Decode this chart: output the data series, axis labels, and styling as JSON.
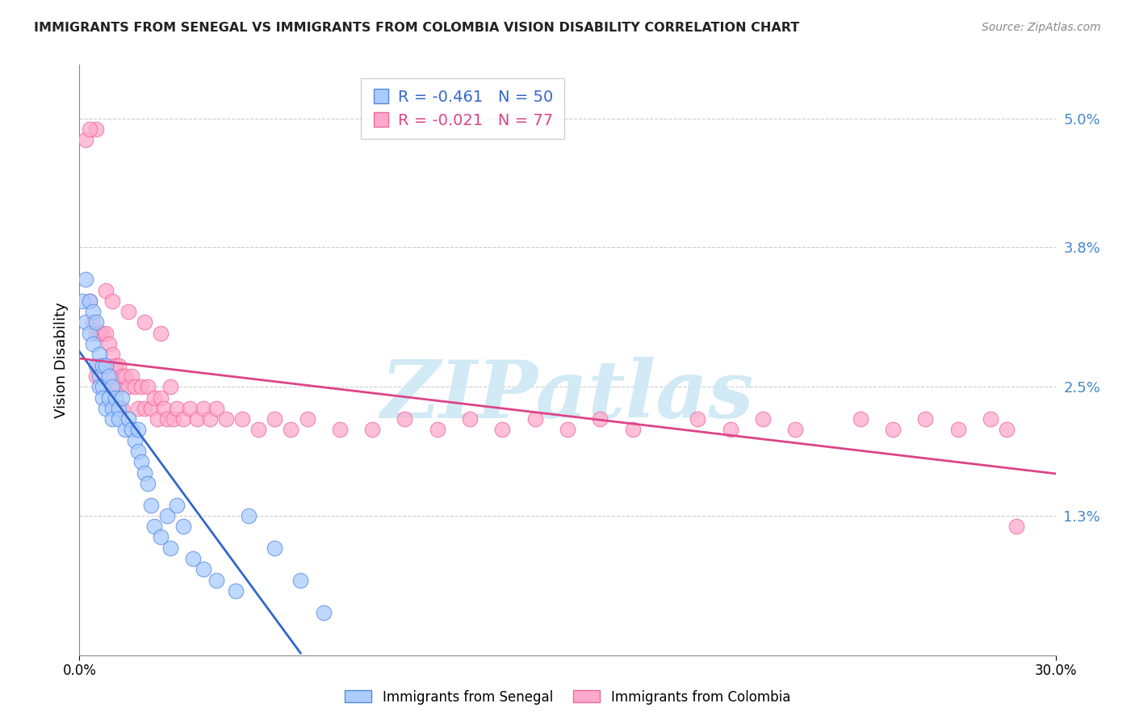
{
  "title": "IMMIGRANTS FROM SENEGAL VS IMMIGRANTS FROM COLOMBIA VISION DISABILITY CORRELATION CHART",
  "source": "Source: ZipAtlas.com",
  "ylabel": "Vision Disability",
  "xlim": [
    0.0,
    0.3
  ],
  "ylim": [
    0.0,
    0.055
  ],
  "ytick_vals": [
    0.013,
    0.025,
    0.038,
    0.05
  ],
  "ytick_labels": [
    "1.3%",
    "2.5%",
    "3.8%",
    "5.0%"
  ],
  "xtick_vals": [
    0.0,
    0.3
  ],
  "xtick_labels": [
    "0.0%",
    "30.0%"
  ],
  "senegal_R": -0.461,
  "senegal_N": 50,
  "colombia_R": -0.021,
  "colombia_N": 77,
  "senegal_color": "#aaccff",
  "colombia_color": "#ffaacc",
  "senegal_edge_color": "#5588dd",
  "colombia_edge_color": "#ee6699",
  "senegal_line_color": "#3366cc",
  "colombia_line_color": "#dd4488",
  "background_color": "#FFFFFF",
  "watermark_text": "ZIPatlas",
  "watermark_color": "#cce8f4",
  "grid_color": "#cccccc",
  "title_color": "#222222",
  "source_color": "#888888",
  "right_tick_color": "#4488cc",
  "senegal_x": [
    0.001,
    0.002,
    0.002,
    0.003,
    0.003,
    0.004,
    0.004,
    0.005,
    0.005,
    0.006,
    0.006,
    0.006,
    0.007,
    0.007,
    0.007,
    0.008,
    0.008,
    0.009,
    0.009,
    0.01,
    0.01,
    0.01,
    0.011,
    0.012,
    0.012,
    0.013,
    0.014,
    0.015,
    0.016,
    0.017,
    0.018,
    0.018,
    0.019,
    0.02,
    0.021,
    0.022,
    0.023,
    0.025,
    0.027,
    0.028,
    0.03,
    0.032,
    0.035,
    0.038,
    0.042,
    0.048,
    0.052,
    0.06,
    0.068,
    0.075
  ],
  "senegal_y": [
    0.033,
    0.035,
    0.031,
    0.033,
    0.03,
    0.032,
    0.029,
    0.031,
    0.027,
    0.028,
    0.026,
    0.025,
    0.027,
    0.025,
    0.024,
    0.027,
    0.023,
    0.026,
    0.024,
    0.025,
    0.023,
    0.022,
    0.024,
    0.023,
    0.022,
    0.024,
    0.021,
    0.022,
    0.021,
    0.02,
    0.019,
    0.021,
    0.018,
    0.017,
    0.016,
    0.014,
    0.012,
    0.011,
    0.013,
    0.01,
    0.014,
    0.012,
    0.009,
    0.008,
    0.007,
    0.006,
    0.013,
    0.01,
    0.007,
    0.004
  ],
  "colombia_x": [
    0.002,
    0.003,
    0.004,
    0.005,
    0.005,
    0.006,
    0.006,
    0.007,
    0.007,
    0.008,
    0.008,
    0.009,
    0.009,
    0.01,
    0.01,
    0.011,
    0.012,
    0.012,
    0.013,
    0.013,
    0.014,
    0.015,
    0.016,
    0.017,
    0.018,
    0.019,
    0.02,
    0.021,
    0.022,
    0.023,
    0.024,
    0.025,
    0.026,
    0.027,
    0.028,
    0.029,
    0.03,
    0.032,
    0.034,
    0.036,
    0.038,
    0.04,
    0.042,
    0.045,
    0.05,
    0.055,
    0.06,
    0.065,
    0.07,
    0.08,
    0.09,
    0.1,
    0.11,
    0.12,
    0.13,
    0.14,
    0.15,
    0.16,
    0.17,
    0.19,
    0.2,
    0.21,
    0.22,
    0.24,
    0.25,
    0.26,
    0.27,
    0.28,
    0.285,
    0.288,
    0.005,
    0.003,
    0.008,
    0.01,
    0.015,
    0.02,
    0.025
  ],
  "colombia_y": [
    0.048,
    0.033,
    0.031,
    0.03,
    0.026,
    0.03,
    0.027,
    0.03,
    0.027,
    0.03,
    0.027,
    0.029,
    0.026,
    0.028,
    0.025,
    0.027,
    0.027,
    0.025,
    0.026,
    0.023,
    0.026,
    0.025,
    0.026,
    0.025,
    0.023,
    0.025,
    0.023,
    0.025,
    0.023,
    0.024,
    0.022,
    0.024,
    0.023,
    0.022,
    0.025,
    0.022,
    0.023,
    0.022,
    0.023,
    0.022,
    0.023,
    0.022,
    0.023,
    0.022,
    0.022,
    0.021,
    0.022,
    0.021,
    0.022,
    0.021,
    0.021,
    0.022,
    0.021,
    0.022,
    0.021,
    0.022,
    0.021,
    0.022,
    0.021,
    0.022,
    0.021,
    0.022,
    0.021,
    0.022,
    0.021,
    0.022,
    0.021,
    0.022,
    0.021,
    0.012,
    0.049,
    0.049,
    0.034,
    0.033,
    0.032,
    0.031,
    0.03
  ]
}
